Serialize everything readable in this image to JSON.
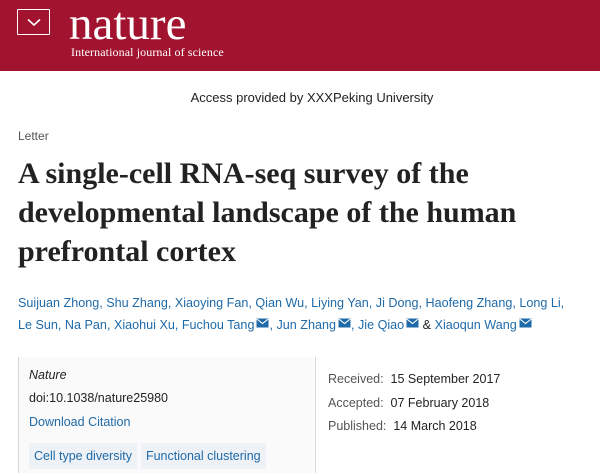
{
  "header": {
    "logo": "nature",
    "tagline": "International journal of science",
    "menu_icon": "chevron-down-icon",
    "brand_color": "#a1132f"
  },
  "access_note": "Access provided by XXXPeking University",
  "article": {
    "type": "Letter",
    "title": "A single-cell RNA-seq survey of the developmental landscape of the human prefrontal cortex",
    "authors": [
      "Suijuan Zhong",
      "Shu Zhang",
      "Xiaoying Fan",
      "Qian Wu",
      "Liying Yan",
      "Ji Dong",
      "Haofeng Zhang",
      "Long Li",
      "Le Sun",
      "Na Pan",
      "Xiaohui Xu",
      "Fuchou Tang",
      "Jun Zhang",
      "Jie Qiao",
      "Xiaoqun Wang"
    ],
    "author_separator": ",",
    "author_conjunction": "&"
  },
  "meta": {
    "journal": "Nature",
    "doi": "doi:10.1038/nature25980",
    "download": "Download Citation",
    "tags": [
      "Cell type diversity",
      "Functional clustering"
    ],
    "dates": [
      {
        "label": "Received:",
        "value": "15 September 2017"
      },
      {
        "label": "Accepted:",
        "value": "07 February 2018"
      },
      {
        "label": "Published:",
        "value": "14 March 2018"
      }
    ]
  },
  "colors": {
    "link": "#1f6aa8",
    "tag_bg": "#eef1f5"
  }
}
